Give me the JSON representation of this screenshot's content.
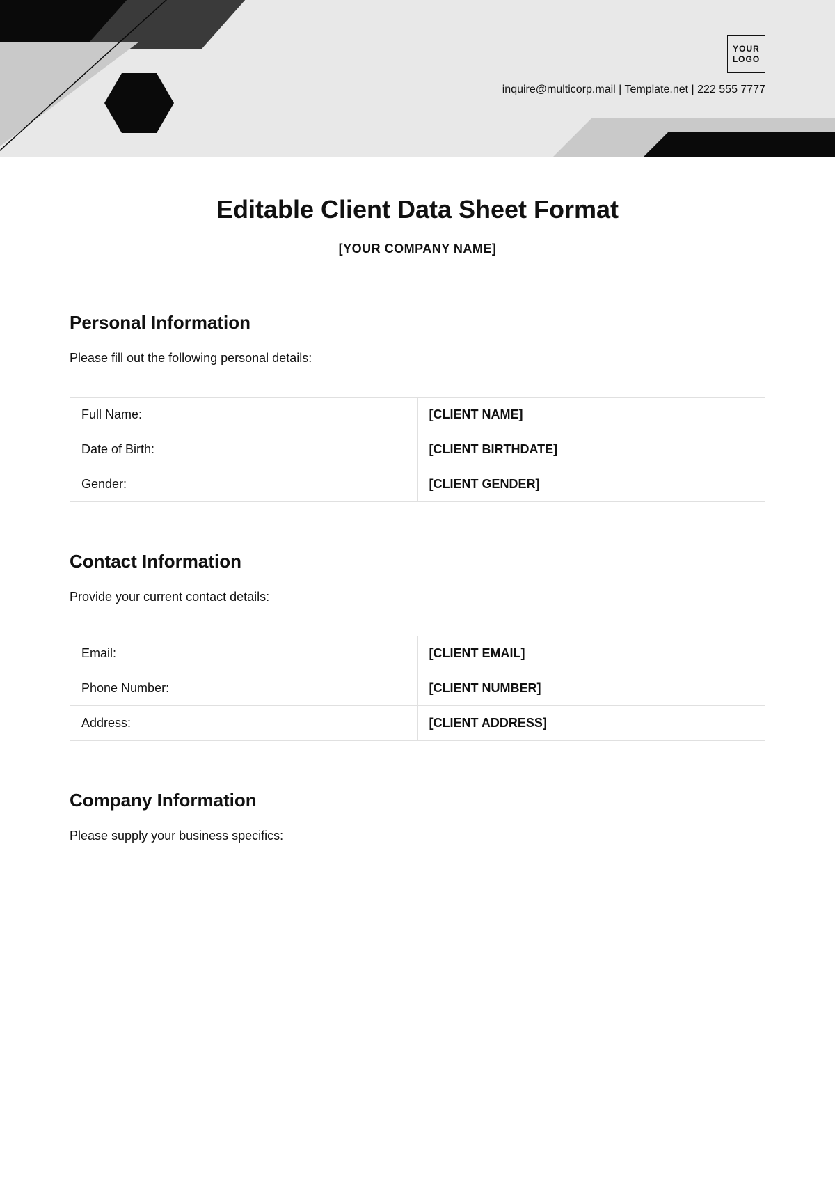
{
  "header": {
    "logo_line1": "YOUR",
    "logo_line2": "LOGO",
    "contact": "inquire@multicorp.mail | Template.net | 222 555 7777",
    "bg_color": "#e8e8e8",
    "colors": {
      "black": "#0a0a0a",
      "dark_gray": "#3a3a3a",
      "mid_gray": "#c9c9c9",
      "light_gray": "#bfbfbf"
    }
  },
  "title": "Editable Client Data Sheet Format",
  "subtitle": "[YOUR COMPANY NAME]",
  "sections": [
    {
      "heading": "Personal Information",
      "desc": "Please fill out the following personal details:",
      "rows": [
        {
          "label": "Full Name:",
          "value": "[CLIENT NAME]"
        },
        {
          "label": "Date of Birth:",
          "value": "[CLIENT BIRTHDATE]"
        },
        {
          "label": "Gender:",
          "value": "[CLIENT GENDER]"
        }
      ]
    },
    {
      "heading": "Contact Information",
      "desc": "Provide your current contact details:",
      "rows": [
        {
          "label": "Email:",
          "value": "[CLIENT EMAIL]"
        },
        {
          "label": "Phone Number:",
          "value": "[CLIENT NUMBER]"
        },
        {
          "label": "Address:",
          "value": "[CLIENT ADDRESS]"
        }
      ]
    },
    {
      "heading": "Company Information",
      "desc": "Please supply your business specifics:",
      "rows": []
    }
  ]
}
